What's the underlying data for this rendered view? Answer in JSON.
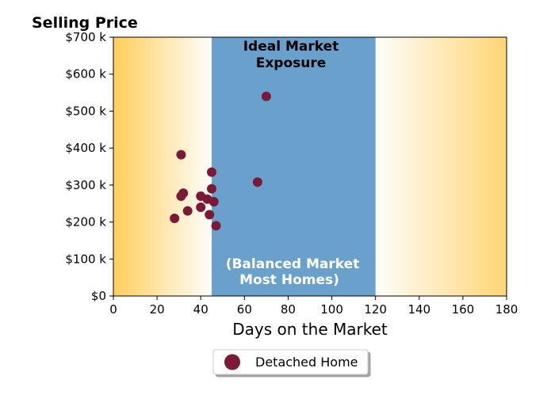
{
  "chart_data": {
    "type": "scatter",
    "title": "Selling Price",
    "xlabel": "Days on the Market",
    "ylabel": "",
    "xlim": [
      0,
      180
    ],
    "ylim": [
      0,
      700000
    ],
    "x_ticks": [
      0,
      20,
      40,
      60,
      80,
      100,
      120,
      140,
      160,
      180
    ],
    "x_tick_labels": [
      "0",
      "20",
      "40",
      "60",
      "80",
      "100",
      "120",
      "140",
      "160",
      "180"
    ],
    "y_ticks": [
      0,
      100000,
      200000,
      300000,
      400000,
      500000,
      600000,
      700000
    ],
    "y_tick_labels": [
      "$0",
      "$100 k",
      "$200 k",
      "$300 k",
      "$400 k",
      "$500 k",
      "$600 k",
      "$700 k"
    ],
    "grid": false,
    "legend_position": "bottom-center",
    "series": [
      {
        "name": "Detached Home",
        "color": "#7a1a36",
        "points": [
          {
            "x": 28,
            "y": 210000
          },
          {
            "x": 31,
            "y": 270000
          },
          {
            "x": 31,
            "y": 382000
          },
          {
            "x": 32,
            "y": 278000
          },
          {
            "x": 34,
            "y": 230000
          },
          {
            "x": 40,
            "y": 240000
          },
          {
            "x": 40,
            "y": 270000
          },
          {
            "x": 43,
            "y": 262000
          },
          {
            "x": 44,
            "y": 220000
          },
          {
            "x": 45,
            "y": 290000
          },
          {
            "x": 45,
            "y": 335000
          },
          {
            "x": 46,
            "y": 255000
          },
          {
            "x": 47,
            "y": 190000
          },
          {
            "x": 66,
            "y": 308000
          },
          {
            "x": 70,
            "y": 540000
          }
        ]
      }
    ],
    "bands": [
      {
        "from": 0,
        "to": 45,
        "style": "gradient",
        "color": "#ffd060"
      },
      {
        "from": 45,
        "to": 120,
        "style": "solid",
        "color": "#6aa0cc"
      },
      {
        "from": 120,
        "to": 180,
        "style": "gradient",
        "color": "#ffd060"
      }
    ],
    "annotations": {
      "ideal_line1": "Ideal Market",
      "ideal_line2": "Exposure",
      "balanced_line1": "(Balanced Market",
      "balanced_line2": "Most Homes)"
    }
  }
}
